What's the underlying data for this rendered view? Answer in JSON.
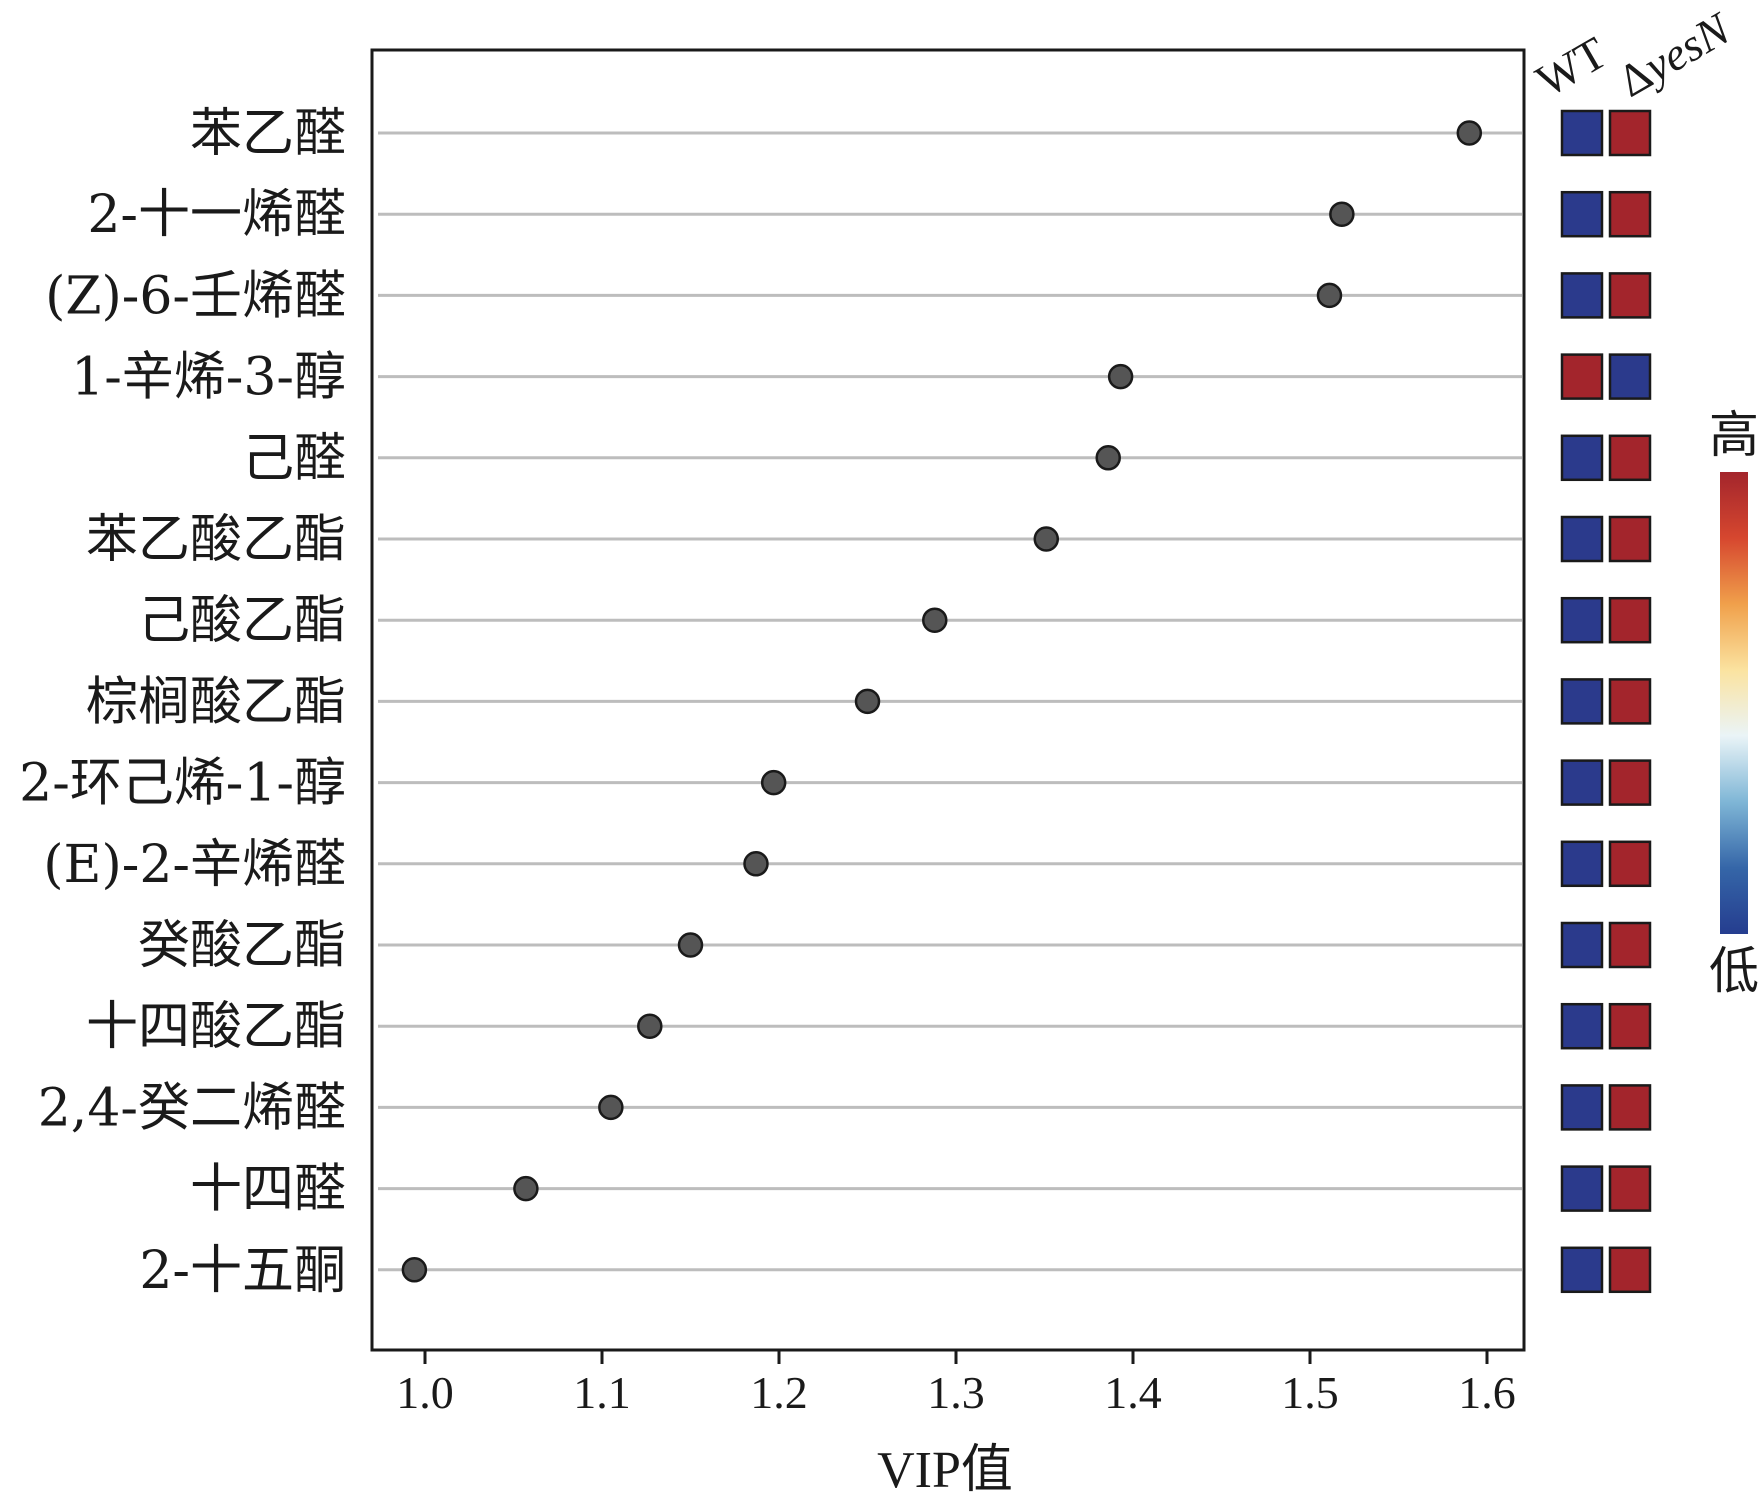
{
  "chart_data": {
    "type": "scatter",
    "xlabel": "VIP值",
    "xlim": [
      0.97,
      1.62
    ],
    "xticks": [
      1.0,
      1.1,
      1.2,
      1.3,
      1.4,
      1.5,
      1.6
    ],
    "xtick_labels": [
      "1.0",
      "1.1",
      "1.2",
      "1.3",
      "1.4",
      "1.5",
      "1.6"
    ],
    "grid": "horizontal",
    "point_color": "#555555",
    "categories": [
      "苯乙醛",
      "2-十一烯醛",
      "(Z)-6-壬烯醛",
      "1-辛烯-3-醇",
      "己醛",
      "苯乙酸乙酯",
      "己酸乙酯",
      "棕榈酸乙酯",
      "2-环己烯-1-醇",
      "(E)-2-辛烯醛",
      "癸酸乙酯",
      "十四酸乙酯",
      "2,4-癸二烯醛",
      "十四醛",
      "2-十五酮"
    ],
    "values": [
      1.59,
      1.518,
      1.511,
      1.393,
      1.386,
      1.351,
      1.288,
      1.25,
      1.197,
      1.187,
      1.15,
      1.127,
      1.105,
      1.057,
      0.994
    ],
    "heatmap": {
      "columns": [
        "WT",
        "ΔyesN"
      ],
      "levels": [
        [
          "low",
          "high"
        ],
        [
          "low",
          "high"
        ],
        [
          "low",
          "high"
        ],
        [
          "high",
          "low"
        ],
        [
          "low",
          "high"
        ],
        [
          "low",
          "high"
        ],
        [
          "low",
          "high"
        ],
        [
          "low",
          "high"
        ],
        [
          "low",
          "high"
        ],
        [
          "low",
          "high"
        ],
        [
          "low",
          "high"
        ],
        [
          "low",
          "high"
        ],
        [
          "low",
          "high"
        ],
        [
          "low",
          "high"
        ],
        [
          "low",
          "high"
        ]
      ],
      "colors": {
        "low": "#2b3a8c",
        "high": "#a3252c"
      }
    },
    "colorbar": {
      "high_label": "高",
      "low_label": "低",
      "stops": [
        "#a3252c",
        "#d6472f",
        "#f0a04b",
        "#fbe3a0",
        "#eaf4f7",
        "#7fb6d6",
        "#3566a8",
        "#253d8f"
      ]
    }
  }
}
